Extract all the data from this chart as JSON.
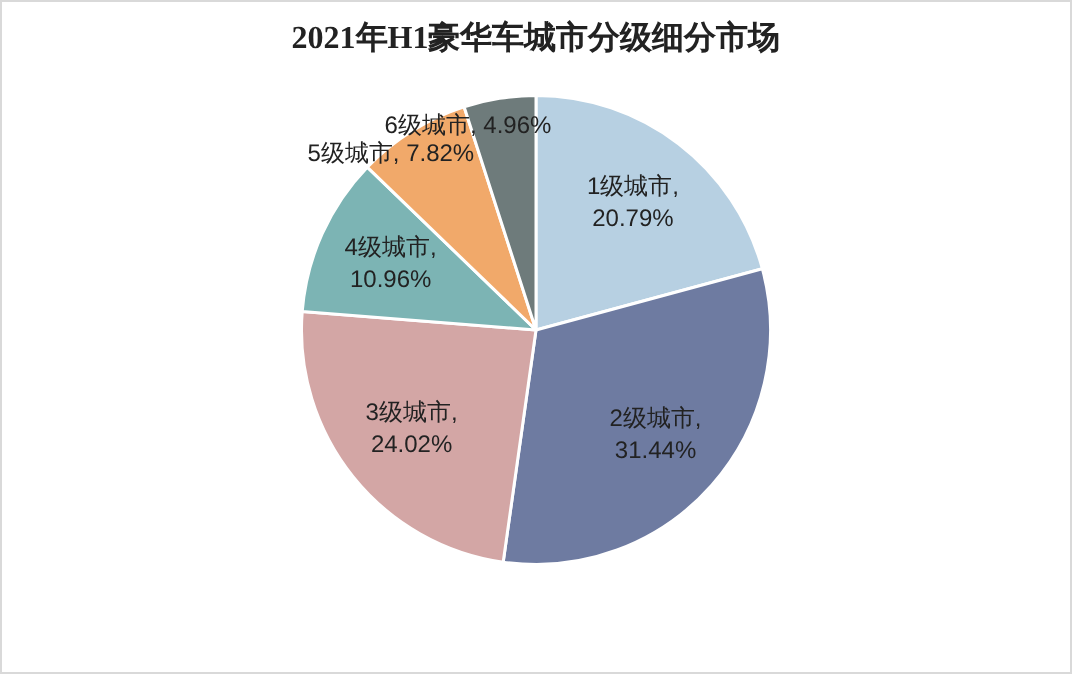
{
  "chart_data": {
    "type": "pie",
    "title": "2021年H1豪华车城市分级细分市场",
    "categories": [
      "1级城市",
      "2级城市",
      "3级城市",
      "4级城市",
      "5级城市",
      "6级城市"
    ],
    "value_labels": [
      ",\n20.79%",
      ",\n31.44%",
      ",\n24.02%",
      ",\n10.96%",
      ", 7.82%",
      ", 4.96%"
    ],
    "values": [
      20.79,
      31.44,
      24.02,
      10.96,
      7.82,
      4.96
    ],
    "colors": [
      "#b7d0e2",
      "#6e7ba1",
      "#d3a6a5",
      "#7cb4b4",
      "#f1a96a",
      "#6e7b7b"
    ],
    "legend": false
  }
}
